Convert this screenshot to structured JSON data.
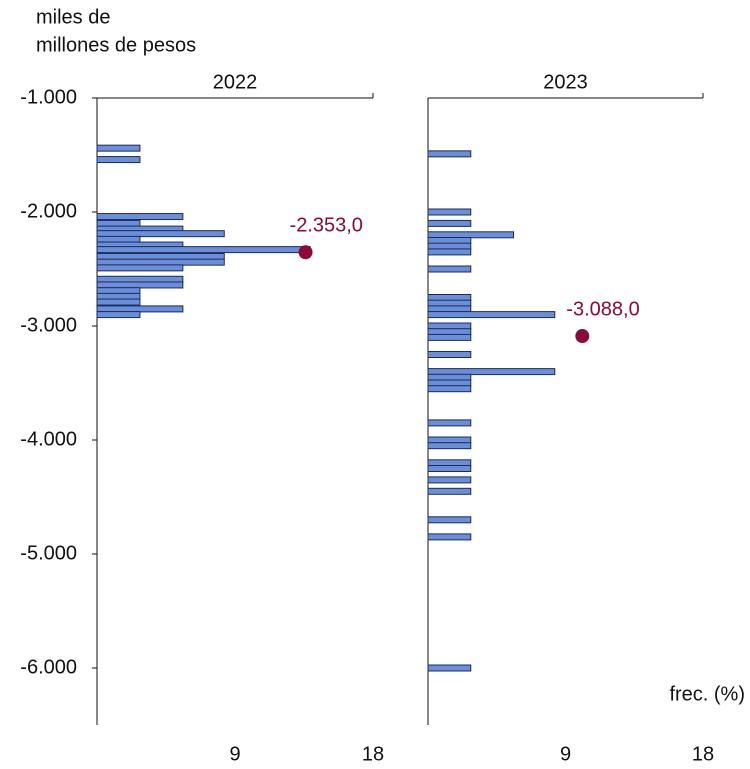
{
  "chart_data": [
    {
      "type": "bar",
      "orientation": "horizontal",
      "title": "2022",
      "y_label": [
        "miles de",
        "millones de pesos"
      ],
      "ylim": [
        -6500,
        -1000
      ],
      "yticks": [
        {
          "value": -1000,
          "label": "-1.000"
        },
        {
          "value": -2000,
          "label": "-2.000"
        },
        {
          "value": -3000,
          "label": "-3.000"
        },
        {
          "value": -4000,
          "label": "-4.000"
        },
        {
          "value": -5000,
          "label": "-5.000"
        },
        {
          "value": -6000,
          "label": "-6.000"
        }
      ],
      "xlim": [
        0,
        18
      ],
      "xticks": [
        9,
        18
      ],
      "color": "#6a8fd8",
      "y": [
        -1440,
        -1540,
        -2040,
        -2100,
        -2150,
        -2190,
        -2240,
        -2290,
        -2330,
        -2390,
        -2440,
        -2490,
        -2590,
        -2640,
        -2690,
        -2740,
        -2790,
        -2850,
        -2900
      ],
      "values": [
        2.8,
        2.8,
        5.6,
        2.8,
        5.6,
        8.3,
        2.8,
        5.6,
        13.9,
        8.3,
        8.3,
        5.6,
        5.6,
        5.6,
        2.8,
        2.8,
        2.8,
        5.6,
        2.8
      ],
      "mean": -2353,
      "mean_x": 13.6,
      "mean_label": "-2.353,0",
      "mean_color": "#8b0a3a"
    },
    {
      "type": "bar",
      "orientation": "horizontal",
      "title": "2023",
      "x_label": "frec. (%)",
      "ylim": [
        -6500,
        -1000
      ],
      "xlim": [
        0,
        18
      ],
      "xticks": [
        9,
        18
      ],
      "color": "#6a8fd8",
      "y": [
        -1490,
        -2000,
        -2100,
        -2200,
        -2250,
        -2300,
        -2350,
        -2500,
        -2750,
        -2800,
        -2850,
        -2900,
        -3000,
        -3050,
        -3100,
        -3250,
        -3400,
        -3450,
        -3500,
        -3550,
        -3850,
        -4000,
        -4050,
        -4200,
        -4250,
        -4350,
        -4450,
        -4700,
        -4850,
        -6000
      ],
      "values": [
        2.8,
        2.8,
        2.8,
        5.6,
        2.8,
        2.8,
        2.8,
        2.8,
        2.8,
        2.8,
        2.8,
        8.3,
        2.8,
        2.8,
        2.8,
        2.8,
        8.3,
        2.8,
        2.8,
        2.8,
        2.8,
        2.8,
        2.8,
        2.8,
        2.8,
        2.8,
        2.8,
        2.8,
        2.8,
        2.8
      ],
      "mean": -3088,
      "mean_x": 10.1,
      "mean_label": "-3.088,0",
      "mean_color": "#8b0a3a"
    }
  ]
}
